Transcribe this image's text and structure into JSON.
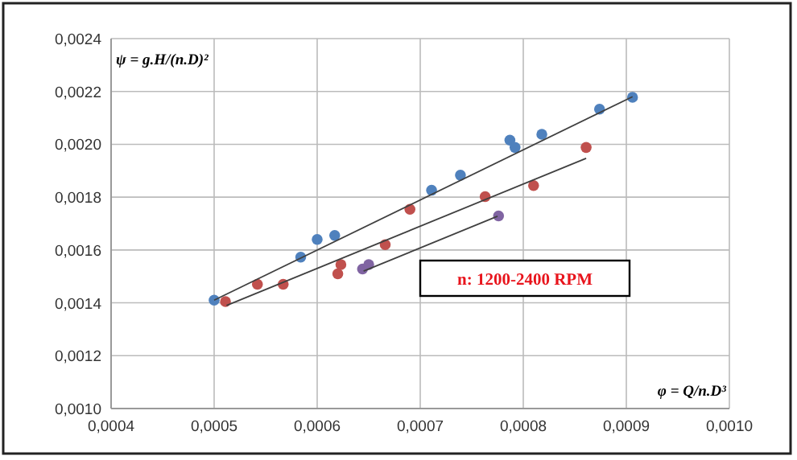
{
  "chart_data": {
    "type": "scatter",
    "xlabel": "φ = Q/n.D³",
    "ylabel": "ψ = g.H/(n.D)²",
    "xlim": [
      0.0004,
      0.001
    ],
    "ylim": [
      0.001,
      0.0024
    ],
    "xticks": [
      {
        "value": 0.0004,
        "label": "0,0004"
      },
      {
        "value": 0.0005,
        "label": "0,0005"
      },
      {
        "value": 0.0006,
        "label": "0,0006"
      },
      {
        "value": 0.0007,
        "label": "0,0007"
      },
      {
        "value": 0.0008,
        "label": "0,0008"
      },
      {
        "value": 0.0009,
        "label": "0,0009"
      },
      {
        "value": 0.001,
        "label": "0,0010"
      }
    ],
    "yticks": [
      {
        "value": 0.001,
        "label": "0,0010"
      },
      {
        "value": 0.0012,
        "label": "0,0012"
      },
      {
        "value": 0.0014,
        "label": "0,0014"
      },
      {
        "value": 0.0016,
        "label": "0,0016"
      },
      {
        "value": 0.0018,
        "label": "0,0018"
      },
      {
        "value": 0.002,
        "label": "0,0020"
      },
      {
        "value": 0.0022,
        "label": "0,0022"
      },
      {
        "value": 0.0024,
        "label": "0,0024"
      }
    ],
    "grid": true,
    "annotations": [
      "n: 1200-2400 RPM"
    ],
    "series": [
      {
        "color": "#4f81bd",
        "marker": "circle",
        "x": [
          0.0005,
          0.000584,
          0.0006,
          0.000617,
          0.000711,
          0.000739,
          0.000787,
          0.000792,
          0.000818,
          0.000874,
          0.000906
        ],
        "values": [
          0.00141,
          0.001573,
          0.00164,
          0.001655,
          0.001826,
          0.001883,
          0.002016,
          0.001988,
          0.002038,
          0.002133,
          0.002178
        ]
      },
      {
        "color": "#c0504d",
        "marker": "circle",
        "x": [
          0.000511,
          0.000542,
          0.000567,
          0.00062,
          0.000623,
          0.000666,
          0.00069,
          0.000763,
          0.00081,
          0.000861
        ],
        "values": [
          0.001405,
          0.00147,
          0.00147,
          0.00151,
          0.001545,
          0.00162,
          0.001754,
          0.001802,
          0.001844,
          0.001988
        ]
      },
      {
        "color": "#8064a2",
        "marker": "circle",
        "x": [
          0.000644,
          0.00065,
          0.000776
        ],
        "values": [
          0.001528,
          0.001545,
          0.001729
        ]
      },
      {
        "type": "line",
        "color": "#404040",
        "x": [
          0.0005,
          0.000906
        ],
        "values": [
          0.00141,
          0.00218
        ]
      },
      {
        "type": "line",
        "color": "#404040",
        "x": [
          0.000512,
          0.000861
        ],
        "values": [
          0.00139,
          0.001947
        ]
      },
      {
        "type": "line",
        "color": "#404040",
        "x": [
          0.000645,
          0.000775
        ],
        "values": [
          0.00152,
          0.001728
        ]
      }
    ]
  }
}
